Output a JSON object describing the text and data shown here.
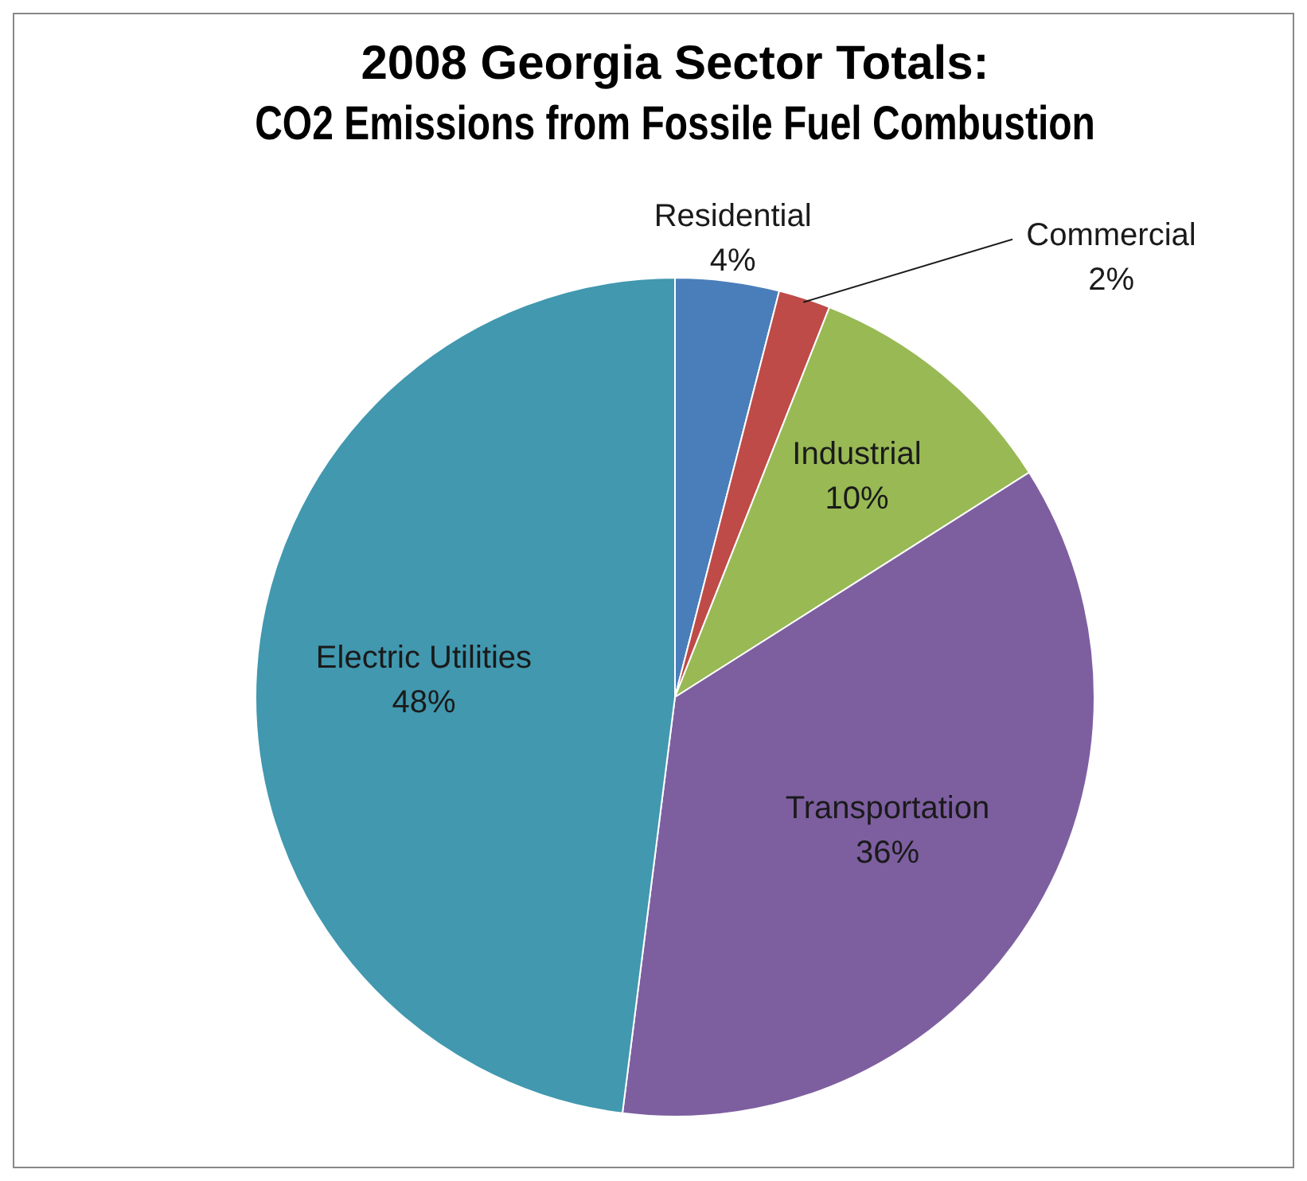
{
  "chart_data": {
    "type": "pie",
    "title": "2008 Georgia Sector Totals:",
    "subtitle": "CO2 Emissions from Fossile Fuel Combustion",
    "categories": [
      "Residential",
      "Commercial",
      "Industrial",
      "Transportation",
      "Electric Utilities"
    ],
    "values": [
      4,
      2,
      10,
      36,
      48
    ],
    "colors": [
      "#4a7ebb",
      "#be4b48",
      "#98b954",
      "#7d5fa0",
      "#4198af"
    ],
    "value_labels": [
      "4%",
      "2%",
      "10%",
      "36%",
      "48%"
    ],
    "legend": false
  }
}
